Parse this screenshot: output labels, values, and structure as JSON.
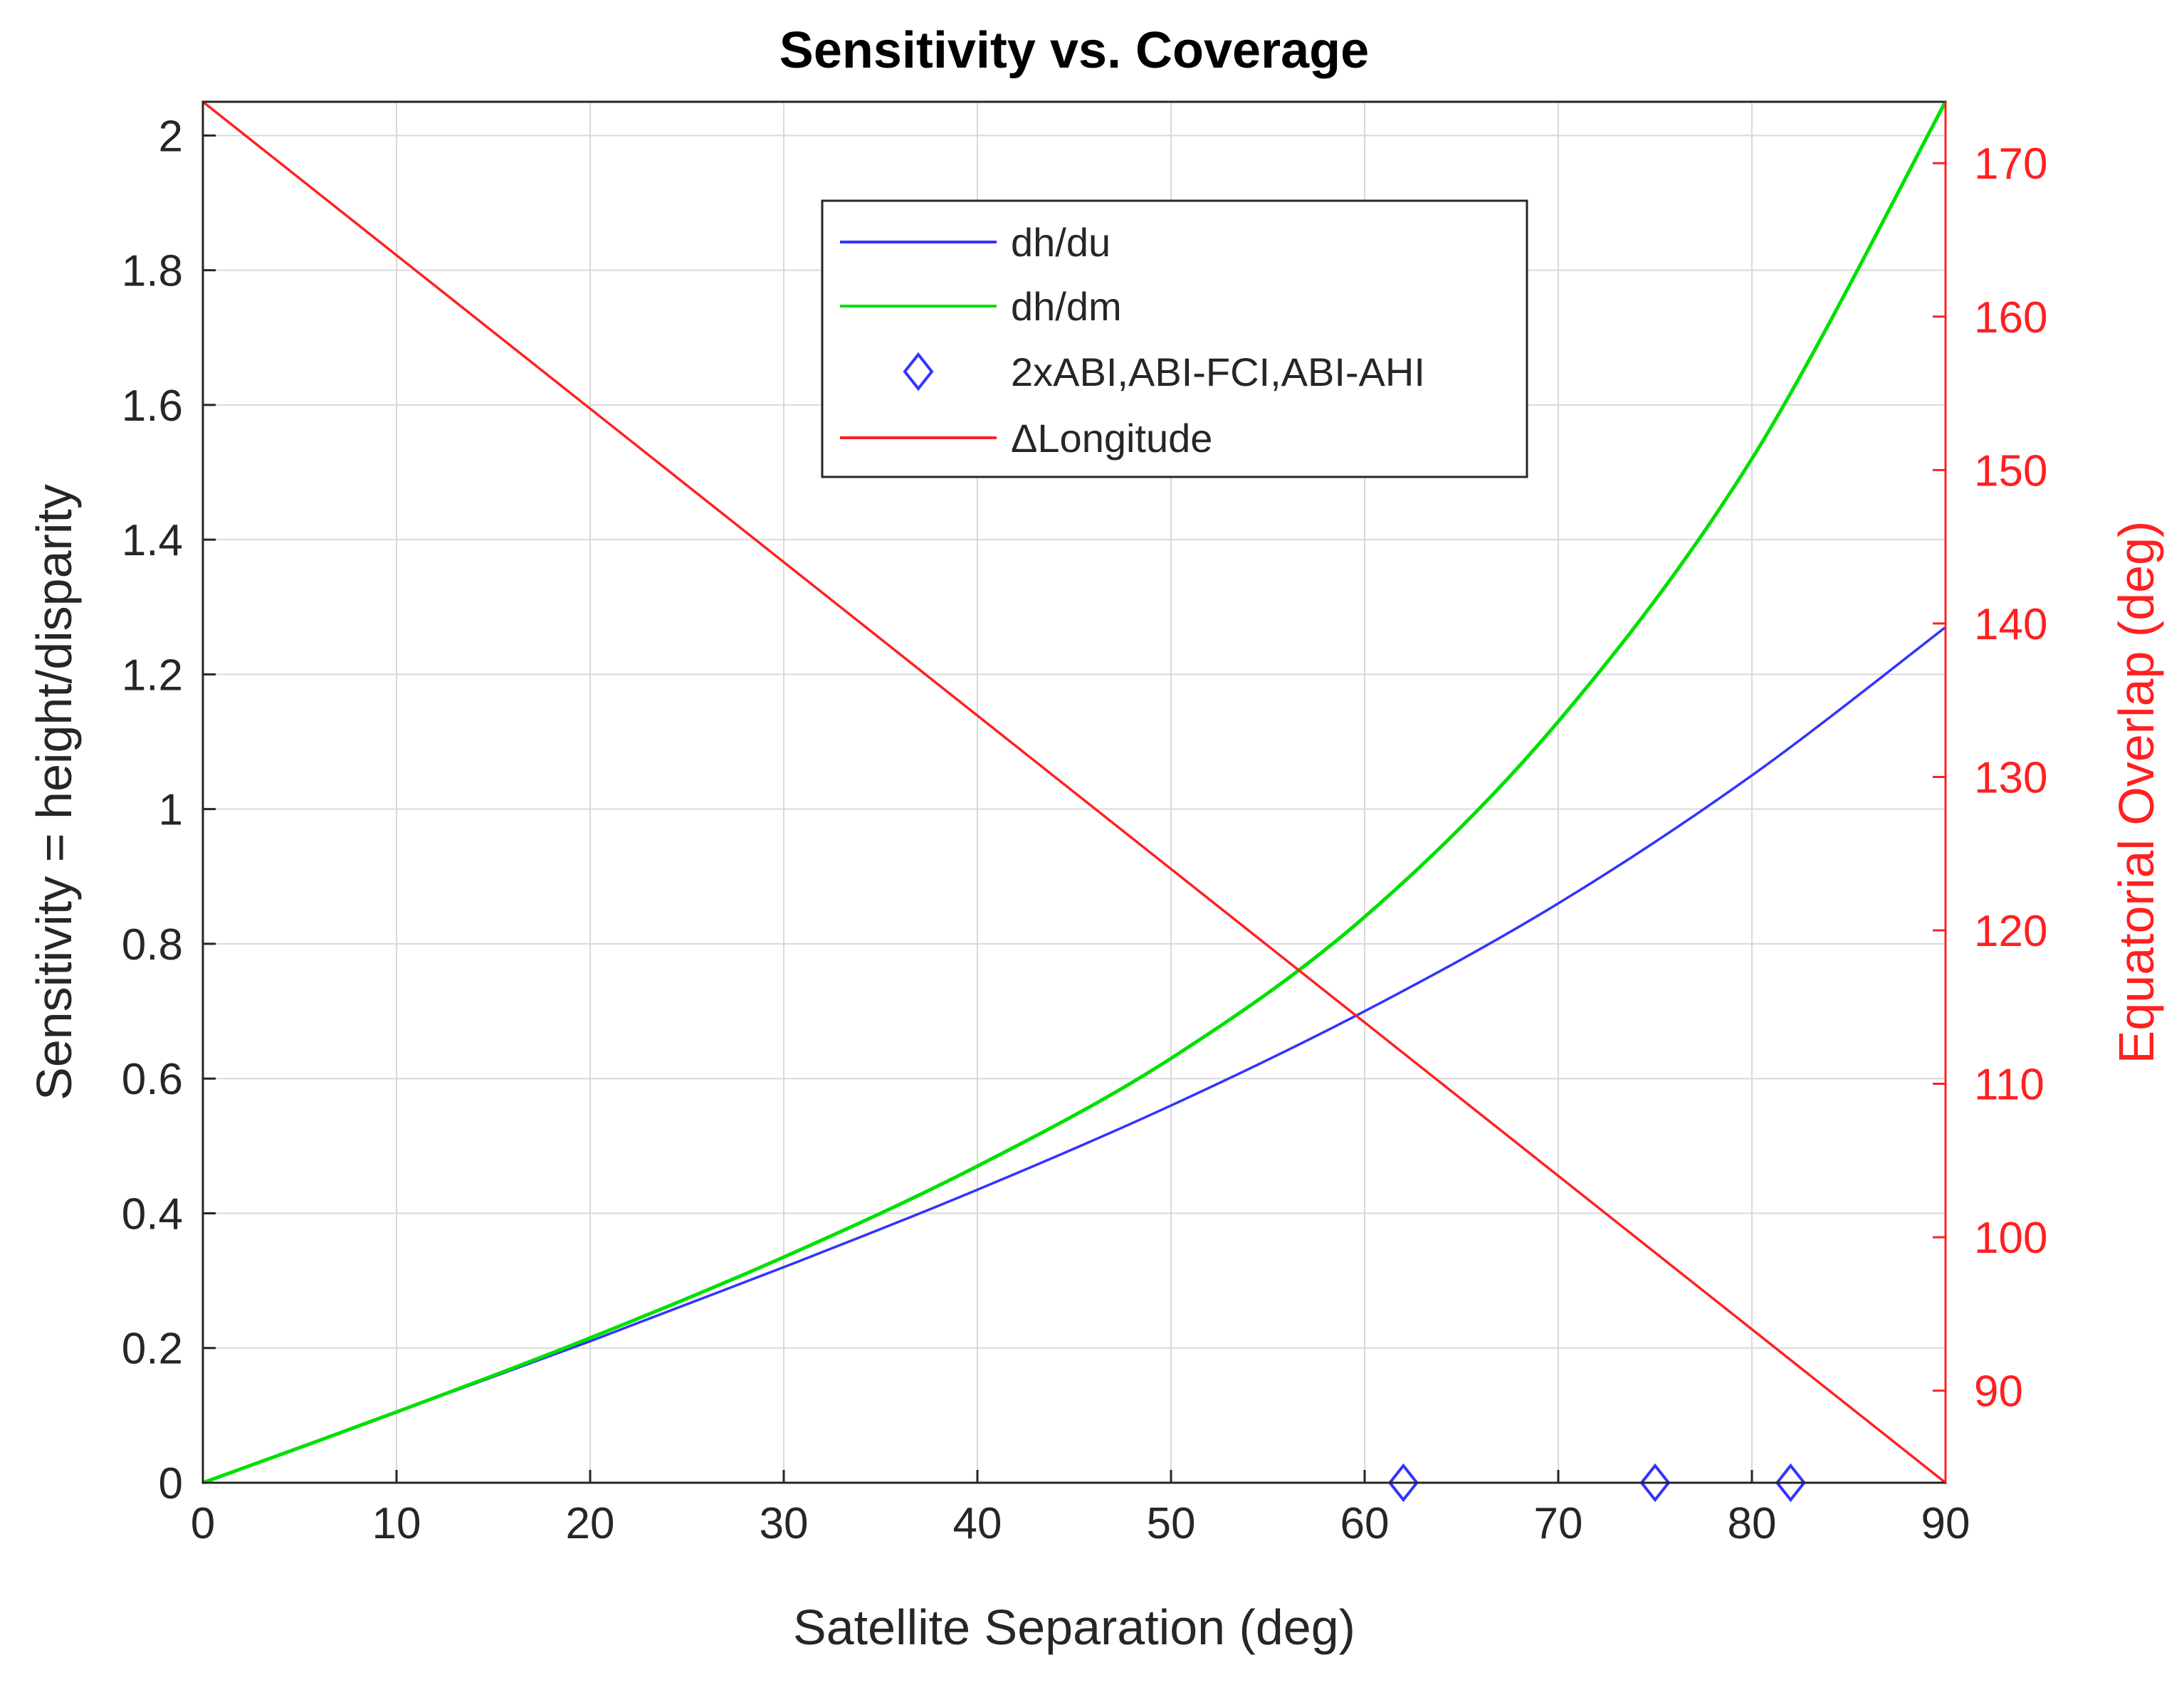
{
  "chart_data": {
    "type": "line",
    "title": "Sensitivity vs. Coverage",
    "xlabel": "Satellite Separation (deg)",
    "ylabel": "Sensitivity = height/disparity",
    "y2label": "Equatorial Overlap (deg)",
    "xlim": [
      0,
      90
    ],
    "ylim": [
      0,
      2.05
    ],
    "y2lim": [
      84,
      174
    ],
    "grid": true,
    "legend_position": "top-center",
    "x_ticks": [
      "0",
      "10",
      "20",
      "30",
      "40",
      "50",
      "60",
      "70",
      "80",
      "90"
    ],
    "y_ticks": [
      "0",
      "0.2",
      "0.4",
      "0.6",
      "0.8",
      "1",
      "1.2",
      "1.4",
      "1.6",
      "1.8",
      "2"
    ],
    "y2_ticks": [
      "90",
      "100",
      "110",
      "120",
      "130",
      "140",
      "150",
      "160",
      "170"
    ],
    "colors": {
      "dh_du": "#3333ff",
      "dh_dm": "#00e000",
      "markers": "#3333ff",
      "delta_longitude": "#ff2020",
      "right_axis": "#ff2020",
      "grid": "#d9d9d9"
    },
    "series": [
      {
        "name": "dh/du",
        "axis": "left",
        "x": [
          0,
          10,
          20,
          30,
          40,
          50,
          60,
          70,
          80,
          90
        ],
        "values": [
          0,
          0.105,
          0.21,
          0.32,
          0.435,
          0.56,
          0.7,
          0.86,
          1.05,
          1.27
        ]
      },
      {
        "name": "dh/dm",
        "axis": "left",
        "x": [
          0,
          10,
          20,
          30,
          40,
          50,
          60,
          70,
          80,
          90
        ],
        "values": [
          0,
          0.105,
          0.215,
          0.335,
          0.47,
          0.63,
          0.84,
          1.13,
          1.52,
          2.05
        ]
      },
      {
        "name": "2xABI,ABI-FCI,ABI-AHI",
        "axis": "left",
        "marker": "diamond",
        "x": [
          62,
          75,
          82
        ],
        "values": [
          0,
          0,
          0
        ]
      },
      {
        "name": "ΔLongitude",
        "axis": "right",
        "x": [
          0,
          90
        ],
        "values": [
          174,
          84
        ]
      }
    ],
    "legend": [
      "dh/du",
      "dh/dm",
      "2xABI,ABI-FCI,ABI-AHI",
      "ΔLongitude"
    ]
  }
}
